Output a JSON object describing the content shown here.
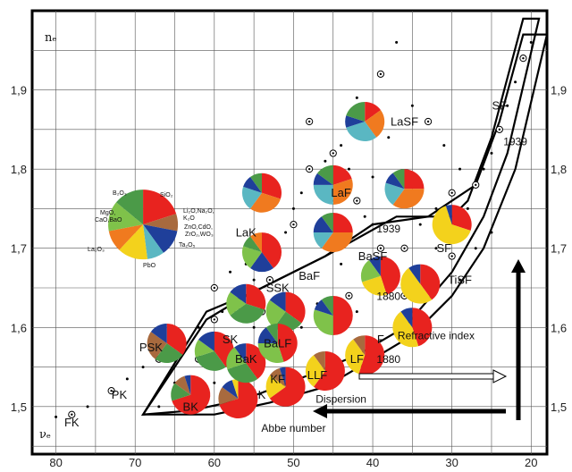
{
  "chart_data": {
    "type": "scatter",
    "x_label": "νₑ",
    "y_label": "nₑ",
    "x_range": [
      83,
      18
    ],
    "y_range": [
      1.44,
      2.0
    ],
    "x_ticks": [
      "80",
      "70",
      "60",
      "50",
      "40",
      "30",
      "20"
    ],
    "y_ticks_left": [
      "1,9",
      "1,8",
      "1,7",
      "1,6",
      "1,5"
    ],
    "y_ticks_right": [
      "1,9",
      "1,8",
      "1,7",
      "1,6",
      "1,5"
    ],
    "y_tick_values": [
      1.9,
      1.8,
      1.7,
      1.6,
      1.5
    ],
    "x_tick_values": [
      80,
      70,
      60,
      50,
      40,
      30,
      20
    ],
    "grid": true,
    "oxide_colors": {
      "SiO2": "#e8231f",
      "B2O3": "#4b9a48",
      "Li2O_Na2O_K2O": "#a86a3e",
      "ZnO_CaO": "#1f3f9a",
      "ZrO2_WO3_Ta2O5": "#5ab7c2",
      "PbO": "#f3d21c",
      "La2O3": "#f07a1f",
      "MgO_CaO_BaO": "#7fc24a"
    },
    "legend_oxides": [
      "B₂O₃",
      "SiO₂",
      "MgO,",
      "CaO,BaO",
      "Li₂O,Na₂O,",
      "K₂O",
      "ZnO,CdO,",
      "ZrO₂,WO₃",
      "Ta₂O₅",
      "PbO",
      "La₂O₃"
    ],
    "glass_families": [
      {
        "label": "FK",
        "x": 78,
        "y": 1.475
      },
      {
        "label": "PK",
        "x": 72,
        "y": 1.51
      },
      {
        "label": "PSK",
        "x": 68,
        "y": 1.57
      },
      {
        "label": "BK",
        "x": 63,
        "y": 1.495
      },
      {
        "label": "SK",
        "x": 58,
        "y": 1.58
      },
      {
        "label": "BaK",
        "x": 56,
        "y": 1.555
      },
      {
        "label": "K",
        "x": 54,
        "y": 1.51
      },
      {
        "label": "KF",
        "x": 52,
        "y": 1.53
      },
      {
        "label": "BaLF",
        "x": 52,
        "y": 1.575
      },
      {
        "label": "SSK",
        "x": 52,
        "y": 1.645
      },
      {
        "label": "LLF",
        "x": 47,
        "y": 1.535
      },
      {
        "label": "BaF",
        "x": 48,
        "y": 1.66
      },
      {
        "label": "LaK",
        "x": 56,
        "y": 1.715
      },
      {
        "label": "LaF",
        "x": 44,
        "y": 1.765
      },
      {
        "label": "LaSF",
        "x": 36,
        "y": 1.855
      },
      {
        "label": "LF",
        "x": 42,
        "y": 1.555
      },
      {
        "label": "BaSF",
        "x": 40,
        "y": 1.685
      },
      {
        "label": "F",
        "x": 39,
        "y": 1.58
      },
      {
        "label": "SF",
        "x": 31,
        "y": 1.695
      },
      {
        "label": "TiSF",
        "x": 29,
        "y": 1.655
      },
      {
        "label": "SF",
        "x": 24,
        "y": 1.875
      }
    ],
    "annotations": [
      {
        "text": "1939",
        "x": 22,
        "y": 1.83
      },
      {
        "text": "1939",
        "x": 38,
        "y": 1.72
      },
      {
        "text": "1880",
        "x": 38,
        "y": 1.635
      },
      {
        "text": "1880",
        "x": 38,
        "y": 1.555
      },
      {
        "text": "Refractive index",
        "x": 32,
        "y": 1.585
      },
      {
        "text": "Dispersion",
        "x": 44,
        "y": 1.505
      },
      {
        "text": "Abbe number",
        "x": 50,
        "y": 1.468
      }
    ],
    "pies": [
      {
        "x": 69,
        "y": 1.73,
        "big": true,
        "slices": [
          [
            "SiO2",
            20
          ],
          [
            "Li2O_Na2O_K2O",
            8
          ],
          [
            "ZnO_CaO",
            12
          ],
          [
            "ZrO2_WO3_Ta2O5",
            8
          ],
          [
            "PbO",
            14
          ],
          [
            "La2O3",
            10
          ],
          [
            "MgO_CaO_BaO",
            14
          ],
          [
            "B2O3",
            14
          ]
        ]
      },
      {
        "x": 41,
        "y": 1.86,
        "slices": [
          [
            "SiO2",
            15
          ],
          [
            "La2O3",
            25
          ],
          [
            "ZrO2_WO3_Ta2O5",
            30
          ],
          [
            "ZnO_CaO",
            10
          ],
          [
            "B2O3",
            20
          ]
        ]
      },
      {
        "x": 45,
        "y": 1.78,
        "slices": [
          [
            "SiO2",
            20
          ],
          [
            "La2O3",
            30
          ],
          [
            "ZrO2_WO3_Ta2O5",
            25
          ],
          [
            "ZnO_CaO",
            10
          ],
          [
            "B2O3",
            15
          ]
        ]
      },
      {
        "x": 36,
        "y": 1.775,
        "slices": [
          [
            "SiO2",
            25
          ],
          [
            "La2O3",
            35
          ],
          [
            "ZrO2_WO3_Ta2O5",
            20
          ],
          [
            "ZnO_CaO",
            10
          ],
          [
            "B2O3",
            10
          ]
        ]
      },
      {
        "x": 54,
        "y": 1.77,
        "slices": [
          [
            "SiO2",
            30
          ],
          [
            "La2O3",
            30
          ],
          [
            "ZrO2_WO3_Ta2O5",
            20
          ],
          [
            "ZnO_CaO",
            10
          ],
          [
            "B2O3",
            10
          ]
        ]
      },
      {
        "x": 45,
        "y": 1.72,
        "slices": [
          [
            "SiO2",
            25
          ],
          [
            "La2O3",
            35
          ],
          [
            "ZrO2_WO3_Ta2O5",
            15
          ],
          [
            "ZnO_CaO",
            15
          ],
          [
            "B2O3",
            10
          ]
        ]
      },
      {
        "x": 54,
        "y": 1.695,
        "slices": [
          [
            "SiO2",
            40
          ],
          [
            "ZnO_CaO",
            20
          ],
          [
            "MgO_CaO_BaO",
            20
          ],
          [
            "B2O3",
            10
          ],
          [
            "La2O3",
            10
          ]
        ]
      },
      {
        "x": 56,
        "y": 1.63,
        "slices": [
          [
            "SiO2",
            30
          ],
          [
            "B2O3",
            35
          ],
          [
            "MgO_CaO_BaO",
            20
          ],
          [
            "ZnO_CaO",
            15
          ]
        ]
      },
      {
        "x": 51,
        "y": 1.62,
        "slices": [
          [
            "SiO2",
            35
          ],
          [
            "B2O3",
            25
          ],
          [
            "MgO_CaO_BaO",
            25
          ],
          [
            "ZnO_CaO",
            15
          ]
        ]
      },
      {
        "x": 45,
        "y": 1.615,
        "slices": [
          [
            "SiO2",
            50
          ],
          [
            "MgO_CaO_BaO",
            30
          ],
          [
            "ZnO_CaO",
            10
          ],
          [
            "B2O3",
            10
          ]
        ]
      },
      {
        "x": 39,
        "y": 1.665,
        "slices": [
          [
            "SiO2",
            45
          ],
          [
            "PbO",
            25
          ],
          [
            "MgO_CaO_BaO",
            20
          ],
          [
            "ZnO_CaO",
            10
          ]
        ]
      },
      {
        "x": 34,
        "y": 1.655,
        "slices": [
          [
            "SiO2",
            40
          ],
          [
            "PbO",
            50
          ],
          [
            "ZnO_CaO",
            10
          ]
        ]
      },
      {
        "x": 30,
        "y": 1.73,
        "slices": [
          [
            "SiO2",
            30
          ],
          [
            "PbO",
            65
          ],
          [
            "ZnO_CaO",
            5
          ]
        ]
      },
      {
        "x": 35,
        "y": 1.6,
        "slices": [
          [
            "SiO2",
            45
          ],
          [
            "PbO",
            45
          ],
          [
            "ZnO_CaO",
            10
          ]
        ]
      },
      {
        "x": 41,
        "y": 1.565,
        "slices": [
          [
            "SiO2",
            55
          ],
          [
            "PbO",
            35
          ],
          [
            "Li2O_Na2O_K2O",
            10
          ]
        ]
      },
      {
        "x": 46,
        "y": 1.545,
        "slices": [
          [
            "SiO2",
            60
          ],
          [
            "PbO",
            30
          ],
          [
            "Li2O_Na2O_K2O",
            10
          ]
        ]
      },
      {
        "x": 51,
        "y": 1.525,
        "slices": [
          [
            "SiO2",
            65
          ],
          [
            "PbO",
            20
          ],
          [
            "Li2O_Na2O_K2O",
            10
          ],
          [
            "ZnO_CaO",
            5
          ]
        ]
      },
      {
        "x": 57,
        "y": 1.51,
        "slices": [
          [
            "SiO2",
            70
          ],
          [
            "Li2O_Na2O_K2O",
            15
          ],
          [
            "ZnO_CaO",
            10
          ],
          [
            "PbO",
            5
          ]
        ]
      },
      {
        "x": 63,
        "y": 1.515,
        "slices": [
          [
            "SiO2",
            70
          ],
          [
            "B2O3",
            15
          ],
          [
            "Li2O_Na2O_K2O",
            10
          ],
          [
            "ZnO_CaO",
            5
          ]
        ]
      },
      {
        "x": 66,
        "y": 1.58,
        "slices": [
          [
            "SiO2",
            35
          ],
          [
            "B2O3",
            25
          ],
          [
            "Li2O_Na2O_K2O",
            25
          ],
          [
            "ZnO_CaO",
            15
          ]
        ]
      },
      {
        "x": 60,
        "y": 1.57,
        "slices": [
          [
            "SiO2",
            40
          ],
          [
            "B2O3",
            30
          ],
          [
            "MgO_CaO_BaO",
            15
          ],
          [
            "ZnO_CaO",
            15
          ]
        ]
      },
      {
        "x": 56,
        "y": 1.555,
        "slices": [
          [
            "SiO2",
            40
          ],
          [
            "B2O3",
            30
          ],
          [
            "MgO_CaO_BaO",
            20
          ],
          [
            "ZnO_CaO",
            10
          ]
        ]
      },
      {
        "x": 52,
        "y": 1.58,
        "slices": [
          [
            "SiO2",
            45
          ],
          [
            "MgO_CaO_BaO",
            30
          ],
          [
            "ZnO_CaO",
            15
          ],
          [
            "B2O3",
            10
          ]
        ]
      }
    ],
    "points": [
      [
        78,
        1.49
      ],
      [
        80,
        1.487
      ],
      [
        76,
        1.5
      ],
      [
        73,
        1.52
      ],
      [
        71,
        1.535
      ],
      [
        69,
        1.55
      ],
      [
        67,
        1.56
      ],
      [
        64,
        1.57
      ],
      [
        62,
        1.6
      ],
      [
        60,
        1.61
      ],
      [
        59,
        1.62
      ],
      [
        58,
        1.63
      ],
      [
        57,
        1.62
      ],
      [
        55,
        1.6
      ],
      [
        55,
        1.66
      ],
      [
        53,
        1.66
      ],
      [
        52,
        1.69
      ],
      [
        51,
        1.72
      ],
      [
        50,
        1.73
      ],
      [
        50,
        1.75
      ],
      [
        49,
        1.77
      ],
      [
        48,
        1.8
      ],
      [
        47,
        1.79
      ],
      [
        46,
        1.81
      ],
      [
        45,
        1.82
      ],
      [
        44,
        1.83
      ],
      [
        43,
        1.8
      ],
      [
        42,
        1.76
      ],
      [
        41,
        1.74
      ],
      [
        40,
        1.73
      ],
      [
        39,
        1.7
      ],
      [
        38,
        1.68
      ],
      [
        37,
        1.66
      ],
      [
        36,
        1.64
      ],
      [
        35,
        1.62
      ],
      [
        34,
        1.6
      ],
      [
        33,
        1.67
      ],
      [
        32,
        1.7
      ],
      [
        31,
        1.72
      ],
      [
        30,
        1.69
      ],
      [
        29,
        1.66
      ],
      [
        28,
        1.75
      ],
      [
        27,
        1.78
      ],
      [
        26,
        1.8
      ],
      [
        25,
        1.82
      ],
      [
        24,
        1.85
      ],
      [
        23,
        1.88
      ],
      [
        22,
        1.91
      ],
      [
        21,
        1.94
      ],
      [
        20,
        1.96
      ],
      [
        42,
        1.89
      ],
      [
        39,
        1.92
      ],
      [
        37,
        1.96
      ],
      [
        35,
        1.88
      ],
      [
        33,
        1.86
      ],
      [
        31,
        1.83
      ],
      [
        29,
        1.8
      ],
      [
        48,
        1.86
      ],
      [
        46,
        1.7
      ],
      [
        44,
        1.68
      ],
      [
        43,
        1.64
      ],
      [
        47,
        1.63
      ],
      [
        49,
        1.6
      ],
      [
        53,
        1.57
      ],
      [
        57,
        1.54
      ],
      [
        60,
        1.53
      ],
      [
        54,
        1.62
      ],
      [
        50,
        1.64
      ],
      [
        42,
        1.62
      ],
      [
        36,
        1.7
      ],
      [
        34,
        1.73
      ],
      [
        32,
        1.75
      ],
      [
        30,
        1.77
      ],
      [
        27,
        1.7
      ],
      [
        25,
        1.72
      ],
      [
        45,
        1.76
      ],
      [
        38,
        1.84
      ],
      [
        40,
        1.79
      ],
      [
        60,
        1.65
      ],
      [
        58,
        1.67
      ],
      [
        56,
        1.68
      ],
      [
        62,
        1.56
      ],
      [
        65,
        1.53
      ],
      [
        67,
        1.5
      ]
    ],
    "outline_1880": [
      [
        69,
        1.49
      ],
      [
        61,
        1.62
      ],
      [
        55,
        1.645
      ],
      [
        46,
        1.69
      ],
      [
        37,
        1.74
      ],
      [
        33,
        1.74
      ],
      [
        30,
        1.74
      ],
      [
        28,
        1.76
      ],
      [
        25,
        1.84
      ],
      [
        21,
        1.99
      ],
      [
        19,
        1.99
      ],
      [
        23,
        1.82
      ],
      [
        26,
        1.74
      ],
      [
        30,
        1.67
      ],
      [
        36,
        1.6
      ],
      [
        42,
        1.565
      ],
      [
        48,
        1.54
      ],
      [
        56,
        1.51
      ],
      [
        63,
        1.495
      ],
      [
        69,
        1.49
      ]
    ],
    "outline_1939": [
      [
        69,
        1.49
      ],
      [
        61,
        1.61
      ],
      [
        56,
        1.64
      ],
      [
        52,
        1.66
      ],
      [
        46,
        1.69
      ],
      [
        40,
        1.73
      ],
      [
        33,
        1.74
      ],
      [
        27,
        1.78
      ],
      [
        24,
        1.86
      ],
      [
        21,
        1.97
      ],
      [
        18,
        1.97
      ],
      [
        22,
        1.8
      ],
      [
        26,
        1.7
      ],
      [
        30,
        1.64
      ],
      [
        35,
        1.59
      ],
      [
        40,
        1.56
      ],
      [
        46,
        1.525
      ],
      [
        53,
        1.505
      ],
      [
        60,
        1.49
      ],
      [
        69,
        1.49
      ]
    ]
  }
}
